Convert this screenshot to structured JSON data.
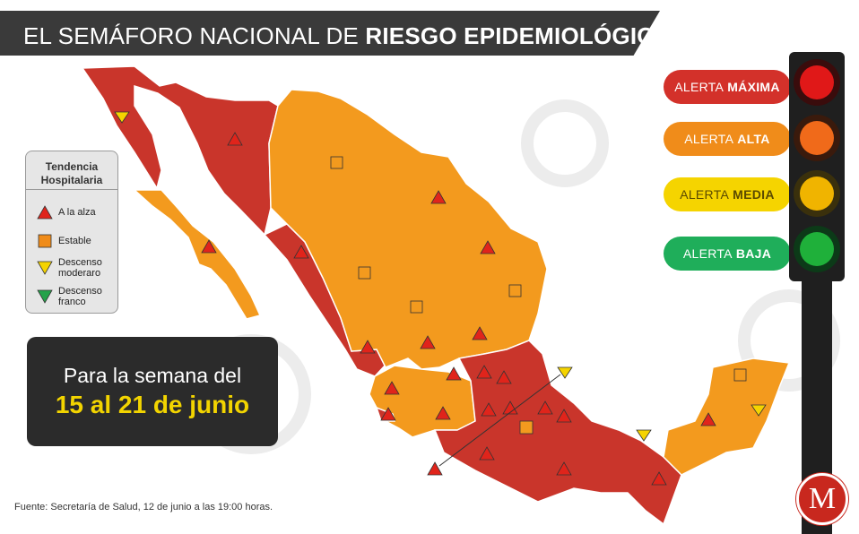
{
  "title": {
    "prefix": "EL SEMÁFORO NACIONAL DE ",
    "emphasis": "RIESGO EPIDEMIOLÓGICO"
  },
  "legend": {
    "title": "Tendencia Hospitalaria",
    "items": [
      {
        "label": "A la alza",
        "icon": "red-triangle-up-icon",
        "color": "#e0241b"
      },
      {
        "label": "Estable",
        "icon": "orange-square-icon",
        "color": "#f08c1a"
      },
      {
        "label": "Descenso moderaro",
        "icon": "yellow-triangle-down-icon",
        "color": "#f5d400"
      },
      {
        "label": "Descenso franco",
        "icon": "green-triangle-down-icon",
        "color": "#25a24a"
      }
    ]
  },
  "week": {
    "line1": "Para la semana del",
    "line2": "15 al 21 de junio"
  },
  "alerts": [
    {
      "prefix": "ALERTA",
      "level": "MÁXIMA",
      "color": "#d3312a",
      "text_color": "#ffffff"
    },
    {
      "prefix": "ALERTA",
      "level": "ALTA",
      "color": "#f08c1a",
      "text_color": "#ffffff"
    },
    {
      "prefix": "ALERTA",
      "level": "MEDIA",
      "color": "#f5d400",
      "text_color": "#5a4a00"
    },
    {
      "prefix": "ALERTA",
      "level": "BAJA",
      "color": "#1fae5a",
      "text_color": "#ffffff"
    }
  ],
  "traffic_light": {
    "lamps": [
      {
        "name": "red-lamp-icon",
        "color": "#e01818"
      },
      {
        "name": "orange-lamp-icon",
        "color": "#f06a1a"
      },
      {
        "name": "yellow-lamp-icon",
        "color": "#f0b400"
      },
      {
        "name": "green-lamp-icon",
        "color": "#1fb03a"
      }
    ]
  },
  "source": "Fuente: Secretaría de Salud, 12 de junio a las 19:00 horas.",
  "logo": {
    "letter": "M"
  },
  "map": {
    "colors": {
      "red_state": "#c9352b",
      "orange_state": "#f39a1e",
      "border": "#ffffff"
    }
  }
}
